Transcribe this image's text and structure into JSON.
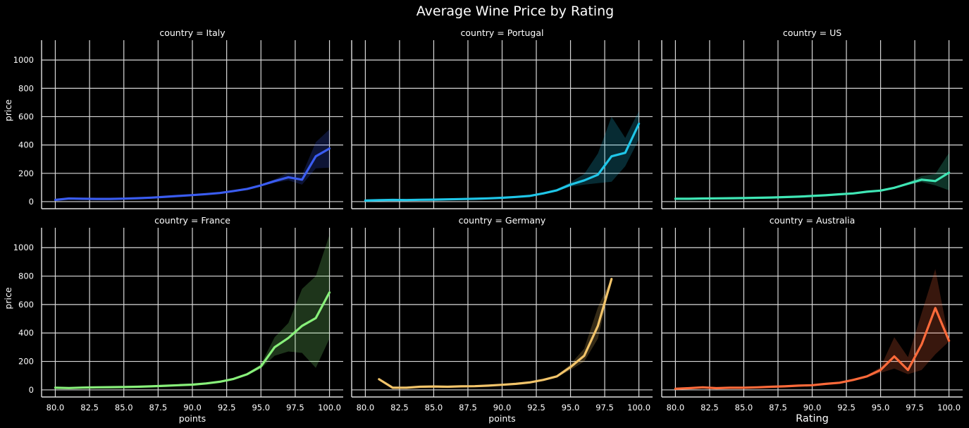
{
  "chart_data": {
    "type": "line",
    "title": "Average Wine Price by Rating",
    "grid": true,
    "xlim": [
      79,
      101
    ],
    "ylim": [
      -50,
      1140
    ],
    "xticks": [
      80.0,
      82.5,
      85.0,
      87.5,
      90.0,
      92.5,
      95.0,
      97.5,
      100.0
    ],
    "xtick_labels": [
      "80.0",
      "82.5",
      "85.0",
      "87.5",
      "90.0",
      "92.5",
      "95.0",
      "97.5",
      "100.0"
    ],
    "yticks": [
      0,
      200,
      400,
      600,
      800,
      1000
    ],
    "ytick_labels": [
      "0",
      "200",
      "400",
      "600",
      "800",
      "1000"
    ],
    "ylabel": "price",
    "xlabel": "points",
    "xlabel_override": "Rating",
    "panels": [
      {
        "title": "country = Italy",
        "color": "#3a5cf0",
        "x": [
          80,
          81,
          82,
          83,
          84,
          85,
          86,
          87,
          88,
          89,
          90,
          91,
          92,
          93,
          94,
          95,
          96,
          97,
          98,
          99,
          100
        ],
        "y": [
          12,
          22,
          20,
          19,
          19,
          21,
          24,
          28,
          34,
          40,
          46,
          53,
          61,
          75,
          90,
          115,
          145,
          172,
          155,
          320,
          375
        ],
        "lower": [
          8,
          17,
          17,
          17,
          17,
          19,
          22,
          26,
          32,
          38,
          44,
          51,
          58,
          71,
          85,
          108,
          132,
          150,
          120,
          235,
          240
        ],
        "upper": [
          16,
          27,
          23,
          21,
          21,
          23,
          26,
          30,
          36,
          42,
          48,
          55,
          64,
          79,
          95,
          122,
          158,
          205,
          190,
          420,
          510
        ]
      },
      {
        "title": "country = Portugal",
        "color": "#1fc6e8",
        "x": [
          80,
          81,
          82,
          83,
          84,
          85,
          86,
          87,
          88,
          89,
          90,
          91,
          92,
          93,
          94,
          95,
          96,
          97,
          98,
          99,
          100
        ],
        "y": [
          8,
          10,
          12,
          11,
          13,
          14,
          16,
          18,
          20,
          23,
          27,
          33,
          40,
          58,
          80,
          120,
          150,
          190,
          320,
          345,
          550
        ],
        "lower": [
          5,
          7,
          9,
          9,
          11,
          12,
          14,
          16,
          18,
          21,
          25,
          31,
          37,
          53,
          73,
          106,
          120,
          130,
          140,
          250,
          440
        ],
        "upper": [
          11,
          13,
          15,
          13,
          15,
          16,
          18,
          20,
          22,
          25,
          29,
          35,
          43,
          64,
          88,
          137,
          195,
          340,
          600,
          450,
          640
        ]
      },
      {
        "title": "country = US",
        "color": "#3fe6b5",
        "x": [
          80,
          81,
          82,
          83,
          84,
          85,
          86,
          87,
          88,
          89,
          90,
          91,
          92,
          93,
          94,
          95,
          96,
          97,
          98,
          99,
          100
        ],
        "y": [
          20,
          20,
          22,
          23,
          24,
          25,
          27,
          29,
          32,
          35,
          40,
          45,
          52,
          58,
          70,
          78,
          98,
          127,
          155,
          145,
          205
        ],
        "lower": [
          18,
          18,
          20,
          21,
          22,
          23,
          25,
          27,
          30,
          33,
          38,
          43,
          49,
          55,
          66,
          73,
          91,
          117,
          138,
          115,
          80
        ],
        "upper": [
          22,
          22,
          24,
          25,
          26,
          27,
          29,
          31,
          34,
          37,
          42,
          47,
          55,
          61,
          74,
          83,
          105,
          137,
          180,
          195,
          345
        ]
      },
      {
        "title": "country = France",
        "color": "#88f07a",
        "x": [
          80,
          81,
          82,
          83,
          84,
          85,
          86,
          87,
          88,
          89,
          90,
          91,
          92,
          93,
          94,
          95,
          96,
          97,
          98,
          99,
          100
        ],
        "y": [
          15,
          13,
          16,
          18,
          19,
          20,
          22,
          25,
          29,
          33,
          37,
          45,
          57,
          77,
          110,
          165,
          300,
          365,
          450,
          505,
          685
        ],
        "lower": [
          12,
          11,
          14,
          16,
          17,
          18,
          20,
          23,
          27,
          31,
          35,
          42,
          53,
          72,
          102,
          150,
          240,
          270,
          260,
          155,
          360
        ],
        "upper": [
          18,
          15,
          18,
          20,
          21,
          22,
          24,
          27,
          31,
          35,
          39,
          48,
          61,
          82,
          118,
          180,
          370,
          470,
          710,
          800,
          1090
        ]
      },
      {
        "title": "country = Germany",
        "color": "#f2c46a",
        "x": [
          81,
          82,
          83,
          84,
          85,
          86,
          87,
          88,
          89,
          90,
          91,
          92,
          93,
          94,
          95,
          96,
          97,
          98
        ],
        "y": [
          75,
          15,
          15,
          22,
          24,
          22,
          25,
          26,
          30,
          36,
          42,
          52,
          70,
          95,
          160,
          240,
          450,
          780
        ],
        "lower": [
          70,
          12,
          12,
          20,
          22,
          20,
          23,
          24,
          28,
          34,
          40,
          49,
          65,
          88,
          140,
          200,
          360,
          775
        ],
        "upper": [
          80,
          18,
          18,
          24,
          26,
          24,
          27,
          28,
          32,
          38,
          44,
          55,
          75,
          102,
          180,
          290,
          580,
          785
        ]
      },
      {
        "title": "country = Australia",
        "color": "#ff6a3a",
        "x": [
          80,
          81,
          82,
          83,
          84,
          85,
          86,
          87,
          88,
          89,
          90,
          91,
          92,
          93,
          94,
          95,
          96,
          97,
          98,
          99,
          100
        ],
        "y": [
          8,
          12,
          18,
          12,
          15,
          15,
          18,
          22,
          25,
          30,
          33,
          42,
          50,
          70,
          95,
          140,
          235,
          140,
          320,
          575,
          345
        ],
        "lower": [
          6,
          10,
          15,
          10,
          13,
          13,
          16,
          20,
          23,
          28,
          31,
          40,
          47,
          66,
          88,
          120,
          150,
          110,
          140,
          250,
          340
        ],
        "upper": [
          10,
          14,
          21,
          14,
          17,
          17,
          20,
          24,
          27,
          32,
          35,
          44,
          53,
          74,
          102,
          160,
          370,
          230,
          540,
          850,
          350
        ]
      }
    ]
  }
}
